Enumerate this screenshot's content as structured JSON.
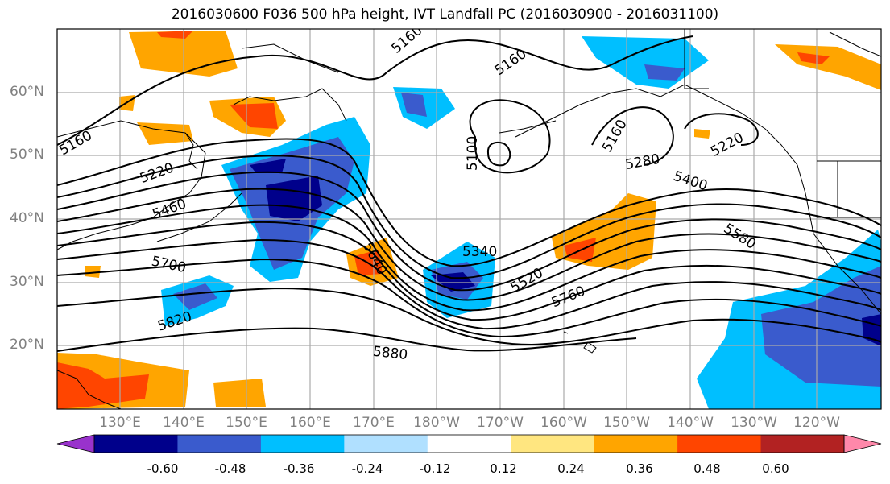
{
  "title": "2016030600 F036 500 hPa height, IVT Landfall PC (2016030900 - 2016031100)",
  "lat_labels": [
    "60°N",
    "50°N",
    "40°N",
    "30°N",
    "20°N"
  ],
  "lon_labels": [
    "130°E",
    "140°E",
    "150°E",
    "160°E",
    "170°E",
    "180°W",
    "170°W",
    "160°W",
    "150°W",
    "140°W",
    "130°W",
    "120°W"
  ],
  "contour_labels": [
    "5160",
    "5160",
    "5160",
    "5220",
    "5460",
    "5700",
    "5820",
    "5640",
    "5880",
    "5100",
    "5340",
    "5520",
    "5760",
    "5160",
    "5280",
    "5400",
    "5580",
    "5220"
  ],
  "colorbar": {
    "ticks": [
      "-0.60",
      "-0.48",
      "-0.36",
      "-0.24",
      "-0.12",
      "0.12",
      "0.24",
      "0.36",
      "0.48",
      "0.60"
    ],
    "colors": [
      "#9932cc",
      "#00008b",
      "#3a5bcd",
      "#00bfff",
      "#b0e0ff",
      "#ffffff",
      "#ffe680",
      "#ffa500",
      "#ff4500",
      "#b22222",
      "#ff88aa"
    ]
  },
  "colors": {
    "land_outline": "#000000",
    "grid": "#aaaaaa",
    "contour": "#000000"
  }
}
